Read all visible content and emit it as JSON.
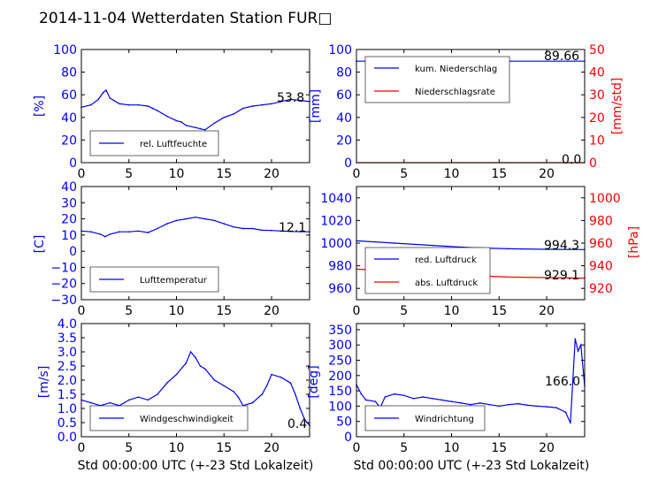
{
  "title": "2014-11-04 Wetterdaten Station FUR□",
  "colors": {
    "primary": "#0000ff",
    "secondary": "#ff0000",
    "axes": "#000000"
  },
  "chart_data": [
    {
      "id": "humidity",
      "type": "line",
      "xlim": [
        0,
        24
      ],
      "ylim": [
        0,
        100
      ],
      "xticks": [
        "0",
        "5",
        "10",
        "15",
        "20"
      ],
      "yticks": [
        "0",
        "20",
        "40",
        "60",
        "80",
        "100"
      ],
      "ylabel": "[%]",
      "xlabel": "",
      "legend": {
        "placement": "lower-left",
        "entries": [
          "rel. Luftfeuchte"
        ]
      },
      "annotation": "53.8",
      "series": [
        {
          "name": "rel. Luftfeuchte",
          "color": "#0000ff",
          "x": [
            0,
            1,
            1.8,
            2.3,
            2.6,
            3,
            4,
            5,
            6,
            7,
            7.5,
            8,
            9,
            10,
            10.5,
            11,
            12,
            12.5,
            13,
            14,
            15,
            16,
            17,
            18,
            19,
            20,
            21,
            22,
            23,
            24
          ],
          "y": [
            49,
            51,
            56,
            62,
            64,
            57,
            52,
            51,
            51,
            50,
            48,
            46,
            41,
            37,
            36,
            33,
            31,
            30,
            29,
            35,
            40,
            43,
            48,
            50,
            51,
            52,
            54,
            56,
            55,
            54
          ]
        }
      ]
    },
    {
      "id": "precip",
      "type": "line",
      "xlim": [
        0,
        24
      ],
      "ylim": [
        0,
        100
      ],
      "ylim2": [
        0,
        50
      ],
      "xticks": [
        "0",
        "5",
        "10",
        "15",
        "20"
      ],
      "yticks": [
        "0",
        "20",
        "40",
        "60",
        "80",
        "100"
      ],
      "yticks2": [
        "0",
        "10",
        "20",
        "30",
        "40",
        "50"
      ],
      "ylabel": "[mm]",
      "ylabel2": "[mm/std]",
      "xlabel": "",
      "legend": {
        "placement": "upper-left",
        "entries": [
          "kum. Niederschlag",
          "Niederschlagsrate"
        ]
      },
      "annotation": "89.66",
      "annotation2": "0.0",
      "series": [
        {
          "name": "kum. Niederschlag",
          "axis": "left",
          "color": "#0000ff",
          "x": [
            0,
            24
          ],
          "y": [
            89.66,
            89.66
          ]
        },
        {
          "name": "Niederschlagsrate",
          "axis": "right",
          "color": "#ff0000",
          "x": [
            0,
            24
          ],
          "y": [
            0,
            0
          ]
        }
      ]
    },
    {
      "id": "temperature",
      "type": "line",
      "xlim": [
        0,
        24
      ],
      "ylim": [
        -30,
        40
      ],
      "xticks": [
        "0",
        "5",
        "10",
        "15",
        "20"
      ],
      "yticks": [
        "−30",
        "−20",
        "−10",
        "0",
        "10",
        "20",
        "30",
        "40"
      ],
      "ylabel": "[C]",
      "xlabel": "",
      "legend": {
        "placement": "lower-left",
        "entries": [
          "Lufttemperatur"
        ]
      },
      "annotation": "12.1",
      "series": [
        {
          "name": "Lufttemperatur",
          "color": "#0000ff",
          "x": [
            0,
            1,
            2,
            2.5,
            3,
            4,
            5,
            6,
            7,
            8,
            9,
            10,
            11,
            12,
            13,
            14,
            15,
            16,
            17,
            18,
            19,
            20,
            21,
            22,
            23,
            24
          ],
          "y": [
            12.5,
            12,
            10.5,
            9,
            10.5,
            12,
            12,
            12.5,
            11.5,
            14,
            17,
            19,
            20,
            21,
            20,
            19,
            17,
            15,
            14,
            14,
            13,
            12.8,
            12.5,
            12.2,
            12.1,
            12
          ]
        }
      ]
    },
    {
      "id": "pressure",
      "type": "line",
      "xlim": [
        0,
        24
      ],
      "ylim": [
        950,
        1050
      ],
      "ylim2": [
        910,
        1010
      ],
      "xticks": [
        "0",
        "5",
        "10",
        "15",
        "20"
      ],
      "yticks": [
        "960",
        "980",
        "1000",
        "1020",
        "1040"
      ],
      "yticks2": [
        "920",
        "940",
        "960",
        "980",
        "1000"
      ],
      "ylabel": "",
      "ylabel2": "[hPa]",
      "xlabel": "",
      "legend": {
        "placement": "lower-left",
        "entries": [
          "red. Luftdruck",
          "abs. Luftdruck"
        ]
      },
      "annotation": "994.3",
      "annotation2": "929.1",
      "series": [
        {
          "name": "red. Luftdruck",
          "axis": "left",
          "color": "#0000ff",
          "x": [
            0,
            4,
            8,
            12,
            16,
            20,
            24
          ],
          "y": [
            1002,
            1000,
            998,
            996,
            995,
            994.5,
            994.3
          ]
        },
        {
          "name": "abs. Luftdruck",
          "axis": "right",
          "color": "#ff0000",
          "x": [
            0,
            4,
            8,
            12,
            16,
            20,
            24
          ],
          "y": [
            937,
            935,
            933,
            931.5,
            930,
            929.5,
            929.1
          ]
        }
      ]
    },
    {
      "id": "wind-speed",
      "type": "line",
      "xlim": [
        0,
        24
      ],
      "ylim": [
        0,
        4
      ],
      "xticks": [
        "0",
        "5",
        "10",
        "15",
        "20"
      ],
      "yticks": [
        "0.0",
        "0.5",
        "1.0",
        "1.5",
        "2.0",
        "2.5",
        "3.0",
        "3.5",
        "4.0"
      ],
      "ylabel": "[m/s]",
      "xlabel": "Std 00:00:00 UTC (+-23 Std Lokalzeit)",
      "legend": {
        "placement": "lower-center",
        "entries": [
          "Windgeschwindigkeit"
        ]
      },
      "annotation": "0.4",
      "series": [
        {
          "name": "Windgeschwindigkeit",
          "color": "#0000ff",
          "x": [
            0,
            1,
            2,
            3,
            4,
            5,
            6,
            7,
            8,
            9,
            10,
            11,
            11.5,
            12,
            12.5,
            13,
            14,
            15,
            16,
            16.5,
            17,
            18,
            19,
            19.5,
            20,
            21,
            22,
            22.5,
            23,
            23.5,
            24
          ],
          "y": [
            1.3,
            1.2,
            1.1,
            1.2,
            1.1,
            1.3,
            1.4,
            1.3,
            1.5,
            1.9,
            2.2,
            2.6,
            3.0,
            2.8,
            2.5,
            2.4,
            2.0,
            1.8,
            1.6,
            1.4,
            1.1,
            1.2,
            1.5,
            1.8,
            2.2,
            2.1,
            1.9,
            1.5,
            1.0,
            0.6,
            0.4
          ]
        }
      ]
    },
    {
      "id": "wind-direction",
      "type": "line",
      "xlim": [
        0,
        24
      ],
      "ylim": [
        0,
        370
      ],
      "xticks": [
        "0",
        "5",
        "10",
        "15",
        "20"
      ],
      "yticks": [
        "0",
        "50",
        "100",
        "150",
        "200",
        "250",
        "300",
        "350"
      ],
      "ylabel": "[deg]",
      "xlabel": "Std 00:00:00 UTC (+-23 Std Lokalzeit)",
      "legend": {
        "placement": "lower-center",
        "entries": [
          "Windrichtung"
        ]
      },
      "annotation": "166.0",
      "series": [
        {
          "name": "Windrichtung",
          "color": "#0000ff",
          "x": [
            0,
            0.5,
            1,
            2,
            2.5,
            3,
            4,
            5,
            6,
            7,
            8,
            9,
            10,
            11,
            12,
            13,
            14,
            15,
            16,
            17,
            18,
            19,
            20,
            21,
            22,
            22.5,
            23,
            23.3,
            23.6,
            24
          ],
          "y": [
            170,
            140,
            120,
            115,
            95,
            130,
            140,
            135,
            125,
            130,
            125,
            120,
            115,
            110,
            105,
            110,
            105,
            100,
            105,
            108,
            103,
            100,
            98,
            95,
            80,
            45,
            320,
            280,
            300,
            166
          ]
        }
      ]
    }
  ]
}
